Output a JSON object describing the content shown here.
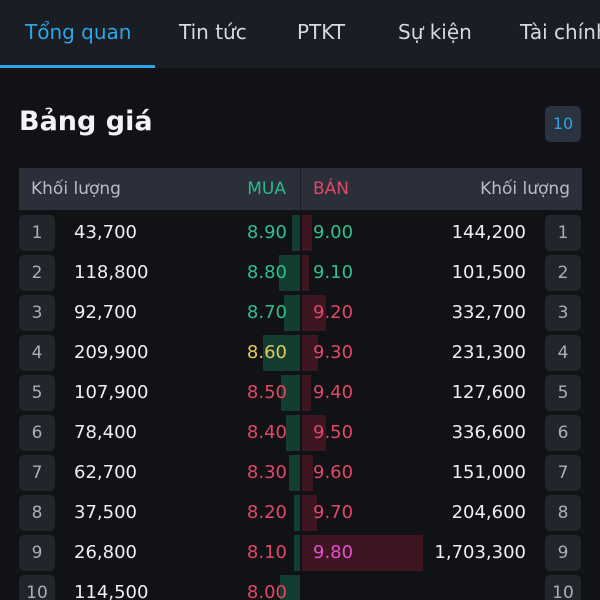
{
  "tabs": [
    {
      "label": "Tổng quan",
      "active": true
    },
    {
      "label": "Tin tức",
      "active": false
    },
    {
      "label": "PTKT",
      "active": false
    },
    {
      "label": "Sự kiện",
      "active": false
    },
    {
      "label": "Tài chính",
      "active": false
    }
  ],
  "board": {
    "title": "Bảng giá",
    "depth": "10",
    "headers": {
      "volume_left": "Khối lượng",
      "buy": "MUA",
      "sell": "BÁN",
      "volume_right": "Khối lượng"
    }
  },
  "rows": [
    {
      "index": "1",
      "buy_volume": "43,700",
      "buy_price": "8.90",
      "buy_color": "#2fc08d",
      "buy_level": 0.05,
      "sell_price": "9.00",
      "sell_volume": "144,200",
      "sell_color": "#2fc08d",
      "sell_level": 0.085
    },
    {
      "index": "2",
      "buy_volume": "118,800",
      "buy_price": "8.80",
      "buy_color": "#2fc08d",
      "buy_level": 0.13,
      "sell_price": "9.10",
      "sell_volume": "101,500",
      "sell_color": "#2fc08d",
      "sell_level": 0.06
    },
    {
      "index": "3",
      "buy_volume": "92,700",
      "buy_price": "8.70",
      "buy_color": "#2fc08d",
      "buy_level": 0.1,
      "sell_price": "9.20",
      "sell_volume": "332,700",
      "sell_color": "#e0486a",
      "sell_level": 0.195
    },
    {
      "index": "4",
      "buy_volume": "209,900",
      "buy_price": "8.60",
      "buy_color": "#e6c95a",
      "buy_level": 0.23,
      "sell_price": "9.30",
      "sell_volume": "231,300",
      "sell_color": "#e0486a",
      "sell_level": 0.135
    },
    {
      "index": "5",
      "buy_volume": "107,900",
      "buy_price": "8.50",
      "buy_color": "#e0486a",
      "buy_level": 0.12,
      "sell_price": "9.40",
      "sell_volume": "127,600",
      "sell_color": "#e0486a",
      "sell_level": 0.075
    },
    {
      "index": "6",
      "buy_volume": "78,400",
      "buy_price": "8.40",
      "buy_color": "#e0486a",
      "buy_level": 0.085,
      "sell_price": "9.50",
      "sell_volume": "336,600",
      "sell_color": "#e0486a",
      "sell_level": 0.2
    },
    {
      "index": "7",
      "buy_volume": "62,700",
      "buy_price": "8.30",
      "buy_color": "#e0486a",
      "buy_level": 0.07,
      "sell_price": "9.60",
      "sell_volume": "151,000",
      "sell_color": "#e0486a",
      "sell_level": 0.09
    },
    {
      "index": "8",
      "buy_volume": "37,500",
      "buy_price": "8.20",
      "buy_color": "#e0486a",
      "buy_level": 0.04,
      "sell_price": "9.70",
      "sell_volume": "204,600",
      "sell_color": "#e0486a",
      "sell_level": 0.12
    },
    {
      "index": "9",
      "buy_volume": "26,800",
      "buy_price": "8.10",
      "buy_color": "#e0486a",
      "buy_level": 0.03,
      "sell_price": "9.80",
      "sell_volume": "1,703,300",
      "sell_color": "#e34fd0",
      "sell_level": 1.0
    },
    {
      "index": "10",
      "buy_volume": "114,500",
      "buy_price": "8.00",
      "buy_color": "#e0486a",
      "buy_level": 0.125,
      "sell_price": "",
      "sell_volume": "",
      "sell_color": "#e0486a",
      "sell_level": 0
    }
  ]
}
